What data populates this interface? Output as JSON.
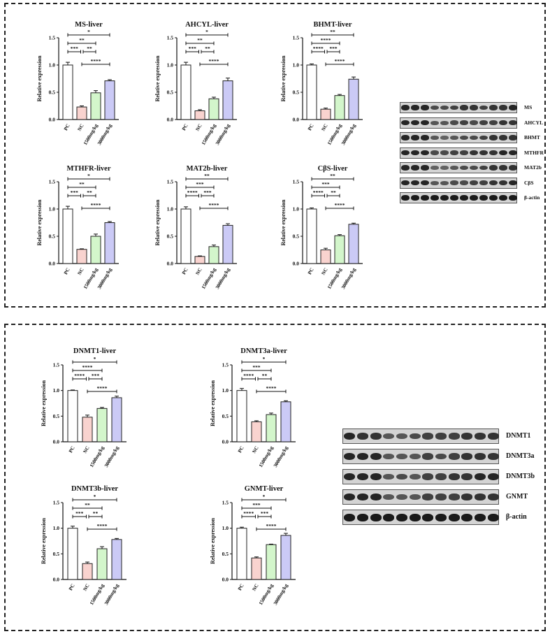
{
  "categories": [
    "PC",
    "NC",
    "1500mg/kg",
    "3000mg/kg"
  ],
  "colors": {
    "bars": [
      "#ffffff",
      "#f9d3cf",
      "#d3f6cb",
      "#cbcaf6"
    ],
    "edge": "#222222"
  },
  "chart_data": [
    {
      "type": "bar",
      "title": "MS-liver",
      "ylabel": "Relative expression",
      "ylim": [
        0,
        1.5
      ],
      "yticks": [
        "0.0",
        "0.5",
        "1.0",
        "1.5"
      ],
      "categories": [
        "PC",
        "NC",
        "1500mg/kg",
        "3000mg/kg"
      ],
      "values": [
        1.0,
        0.23,
        0.49,
        0.71
      ],
      "errors": [
        0.05,
        0.02,
        0.04,
        0.02
      ],
      "significance": [
        {
          "from": 0,
          "to": 3,
          "label": "*"
        },
        {
          "from": 0,
          "to": 2,
          "label": "**"
        },
        {
          "from": 0,
          "to": 1,
          "label": "***"
        },
        {
          "from": 1,
          "to": 2,
          "label": "**"
        },
        {
          "from": 1,
          "to": 3,
          "label": "****"
        }
      ]
    },
    {
      "type": "bar",
      "title": "AHCYL-liver",
      "ylabel": "Relative expression",
      "ylim": [
        0,
        1.5
      ],
      "yticks": [
        "0.0",
        "0.5",
        "1.0",
        "1.5"
      ],
      "categories": [
        "PC",
        "NC",
        "1500mg/kg",
        "3000mg/kg"
      ],
      "values": [
        1.0,
        0.16,
        0.38,
        0.71
      ],
      "errors": [
        0.05,
        0.02,
        0.03,
        0.05
      ],
      "significance": [
        {
          "from": 0,
          "to": 3,
          "label": "*"
        },
        {
          "from": 0,
          "to": 2,
          "label": "**"
        },
        {
          "from": 0,
          "to": 1,
          "label": "***"
        },
        {
          "from": 1,
          "to": 2,
          "label": "**"
        },
        {
          "from": 1,
          "to": 3,
          "label": "****"
        }
      ]
    },
    {
      "type": "bar",
      "title": "BHMT-liver",
      "ylabel": "Relative expression",
      "ylim": [
        0,
        1.5
      ],
      "yticks": [
        "0.0",
        "0.5",
        "1.0",
        "1.5"
      ],
      "categories": [
        "PC",
        "NC",
        "1500mg/kg",
        "3000mg/kg"
      ],
      "values": [
        1.0,
        0.19,
        0.44,
        0.74
      ],
      "errors": [
        0.02,
        0.02,
        0.02,
        0.04
      ],
      "significance": [
        {
          "from": 0,
          "to": 3,
          "label": "**"
        },
        {
          "from": 0,
          "to": 2,
          "label": "****"
        },
        {
          "from": 0,
          "to": 1,
          "label": "****"
        },
        {
          "from": 1,
          "to": 2,
          "label": "***"
        },
        {
          "from": 1,
          "to": 3,
          "label": "****"
        }
      ]
    },
    {
      "type": "bar",
      "title": "MTHFR-liver",
      "ylabel": "Relative expression",
      "ylim": [
        0,
        1.5
      ],
      "yticks": [
        "0.0",
        "0.5",
        "1.0",
        "1.5"
      ],
      "categories": [
        "PC",
        "NC",
        "1500mg/kg",
        "3000mg/kg"
      ],
      "values": [
        1.0,
        0.26,
        0.5,
        0.75
      ],
      "errors": [
        0.05,
        0.01,
        0.04,
        0.02
      ],
      "significance": [
        {
          "from": 0,
          "to": 3,
          "label": "*"
        },
        {
          "from": 0,
          "to": 2,
          "label": "**"
        },
        {
          "from": 0,
          "to": 1,
          "label": "***"
        },
        {
          "from": 1,
          "to": 2,
          "label": "**"
        },
        {
          "from": 1,
          "to": 3,
          "label": "****"
        }
      ]
    },
    {
      "type": "bar",
      "title": "MAT2b-liver",
      "ylabel": "Relative expression",
      "ylim": [
        0,
        1.5
      ],
      "yticks": [
        "0.0",
        "0.5",
        "1.0",
        "1.5"
      ],
      "categories": [
        "PC",
        "NC",
        "1500mg/kg",
        "3000mg/kg"
      ],
      "values": [
        1.0,
        0.13,
        0.31,
        0.7
      ],
      "errors": [
        0.04,
        0.01,
        0.03,
        0.03
      ],
      "significance": [
        {
          "from": 0,
          "to": 3,
          "label": "**"
        },
        {
          "from": 0,
          "to": 2,
          "label": "***"
        },
        {
          "from": 0,
          "to": 1,
          "label": "****"
        },
        {
          "from": 1,
          "to": 2,
          "label": "***"
        },
        {
          "from": 1,
          "to": 3,
          "label": "****"
        }
      ]
    },
    {
      "type": "bar",
      "title": "CβS-liver",
      "ylabel": "Relative expression",
      "ylim": [
        0,
        1.5
      ],
      "yticks": [
        "0.0",
        "0.5",
        "1.0",
        "1.5"
      ],
      "categories": [
        "PC",
        "NC",
        "1500mg/kg",
        "3000mg/kg"
      ],
      "values": [
        1.0,
        0.25,
        0.51,
        0.72
      ],
      "errors": [
        0.02,
        0.03,
        0.02,
        0.02
      ],
      "significance": [
        {
          "from": 0,
          "to": 3,
          "label": "**"
        },
        {
          "from": 0,
          "to": 2,
          "label": "***"
        },
        {
          "from": 0,
          "to": 1,
          "label": "****"
        },
        {
          "from": 1,
          "to": 2,
          "label": "**"
        },
        {
          "from": 1,
          "to": 3,
          "label": "****"
        }
      ]
    },
    {
      "type": "bar",
      "title": "DNMT1-liver",
      "ylabel": "Relative expression",
      "ylim": [
        0,
        1.5
      ],
      "yticks": [
        "0.0",
        "0.5",
        "1.0",
        "1.5"
      ],
      "categories": [
        "PC",
        "NC",
        "1500mg/kg",
        "3000mg/kg"
      ],
      "values": [
        1.0,
        0.48,
        0.65,
        0.86
      ],
      "errors": [
        0.01,
        0.04,
        0.02,
        0.03
      ],
      "significance": [
        {
          "from": 0,
          "to": 3,
          "label": "*"
        },
        {
          "from": 0,
          "to": 2,
          "label": "****"
        },
        {
          "from": 0,
          "to": 1,
          "label": "****"
        },
        {
          "from": 1,
          "to": 2,
          "label": "***"
        },
        {
          "from": 1,
          "to": 3,
          "label": "****"
        }
      ]
    },
    {
      "type": "bar",
      "title": "DNMT3a-liver",
      "ylabel": "Relative expression",
      "ylim": [
        0,
        1.5
      ],
      "yticks": [
        "0.0",
        "0.5",
        "1.0",
        "1.5"
      ],
      "categories": [
        "PC",
        "NC",
        "1500mg/kg",
        "3000mg/kg"
      ],
      "values": [
        1.0,
        0.39,
        0.53,
        0.78
      ],
      "errors": [
        0.04,
        0.02,
        0.03,
        0.02
      ],
      "significance": [
        {
          "from": 0,
          "to": 3,
          "label": "*"
        },
        {
          "from": 0,
          "to": 2,
          "label": "***"
        },
        {
          "from": 0,
          "to": 1,
          "label": "****"
        },
        {
          "from": 1,
          "to": 2,
          "label": "**"
        },
        {
          "from": 1,
          "to": 3,
          "label": "****"
        }
      ]
    },
    {
      "type": "bar",
      "title": "DNMT3b-liver",
      "ylabel": "Relative expression",
      "ylim": [
        0,
        1.5
      ],
      "yticks": [
        "0.0",
        "0.5",
        "1.0",
        "1.5"
      ],
      "categories": [
        "PC",
        "NC",
        "1500mg/kg",
        "3000mg/kg"
      ],
      "values": [
        1.0,
        0.31,
        0.6,
        0.78
      ],
      "errors": [
        0.04,
        0.03,
        0.04,
        0.02
      ],
      "significance": [
        {
          "from": 0,
          "to": 3,
          "label": "*"
        },
        {
          "from": 0,
          "to": 2,
          "label": "**"
        },
        {
          "from": 0,
          "to": 1,
          "label": "***"
        },
        {
          "from": 1,
          "to": 2,
          "label": "**"
        },
        {
          "from": 1,
          "to": 3,
          "label": "****"
        }
      ]
    },
    {
      "type": "bar",
      "title": "GNMT-liver",
      "ylabel": "Relative expression",
      "ylim": [
        0,
        1.5
      ],
      "yticks": [
        "0.0",
        "0.5",
        "1.0",
        "1.5"
      ],
      "categories": [
        "PC",
        "NC",
        "1500mg/kg",
        "3000mg/kg"
      ],
      "values": [
        1.0,
        0.42,
        0.68,
        0.86
      ],
      "errors": [
        0.02,
        0.02,
        0.01,
        0.04
      ],
      "significance": [
        {
          "from": 0,
          "to": 3,
          "label": "*"
        },
        {
          "from": 0,
          "to": 2,
          "label": "***"
        },
        {
          "from": 0,
          "to": 1,
          "label": "****"
        },
        {
          "from": 1,
          "to": 2,
          "label": "***"
        },
        {
          "from": 1,
          "to": 3,
          "label": "****"
        }
      ]
    }
  ],
  "blots": [
    {
      "rows": [
        "MS",
        "AHCYL",
        "BHMT",
        "MTHFR",
        "MAT2b",
        "CβS",
        "β-actin"
      ],
      "intensity": [
        [
          0.9,
          0.9,
          0.9,
          0.6,
          0.6,
          0.7,
          0.8,
          0.8,
          0.7,
          0.8,
          0.8,
          0.9
        ],
        [
          0.9,
          0.9,
          0.9,
          0.5,
          0.5,
          0.6,
          0.7,
          0.6,
          0.7,
          0.7,
          0.8,
          0.8
        ],
        [
          0.9,
          0.9,
          0.9,
          0.5,
          0.4,
          0.5,
          0.6,
          0.6,
          0.7,
          0.8,
          0.8,
          0.8
        ],
        [
          0.9,
          0.9,
          0.9,
          0.6,
          0.6,
          0.7,
          0.7,
          0.8,
          0.8,
          0.8,
          0.9,
          0.9
        ],
        [
          0.9,
          0.9,
          0.9,
          0.4,
          0.4,
          0.5,
          0.6,
          0.6,
          0.7,
          0.8,
          0.8,
          0.8
        ],
        [
          0.9,
          0.9,
          0.9,
          0.5,
          0.5,
          0.6,
          0.6,
          0.7,
          0.7,
          0.8,
          0.8,
          0.9
        ],
        [
          1.0,
          1.0,
          1.0,
          1.0,
          1.0,
          1.0,
          1.0,
          1.0,
          1.0,
          1.0,
          1.0,
          1.0
        ]
      ]
    },
    {
      "rows": [
        "DNMT1",
        "DNMT3a",
        "DNMT3b",
        "GNMT",
        "β-actin"
      ],
      "intensity": [
        [
          0.9,
          0.8,
          0.8,
          0.5,
          0.5,
          0.6,
          0.7,
          0.7,
          0.7,
          0.8,
          0.8,
          0.8
        ],
        [
          0.9,
          0.9,
          0.9,
          0.5,
          0.5,
          0.5,
          0.7,
          0.6,
          0.7,
          0.8,
          0.8,
          0.8
        ],
        [
          0.9,
          0.9,
          0.9,
          0.5,
          0.6,
          0.5,
          0.7,
          0.7,
          0.8,
          0.8,
          0.9,
          0.9
        ],
        [
          0.9,
          0.9,
          0.9,
          0.5,
          0.5,
          0.5,
          0.7,
          0.7,
          0.7,
          0.8,
          0.8,
          0.8
        ],
        [
          1.0,
          1.0,
          1.0,
          1.0,
          1.0,
          1.0,
          1.0,
          1.0,
          1.0,
          1.0,
          1.0,
          1.0
        ]
      ]
    }
  ]
}
